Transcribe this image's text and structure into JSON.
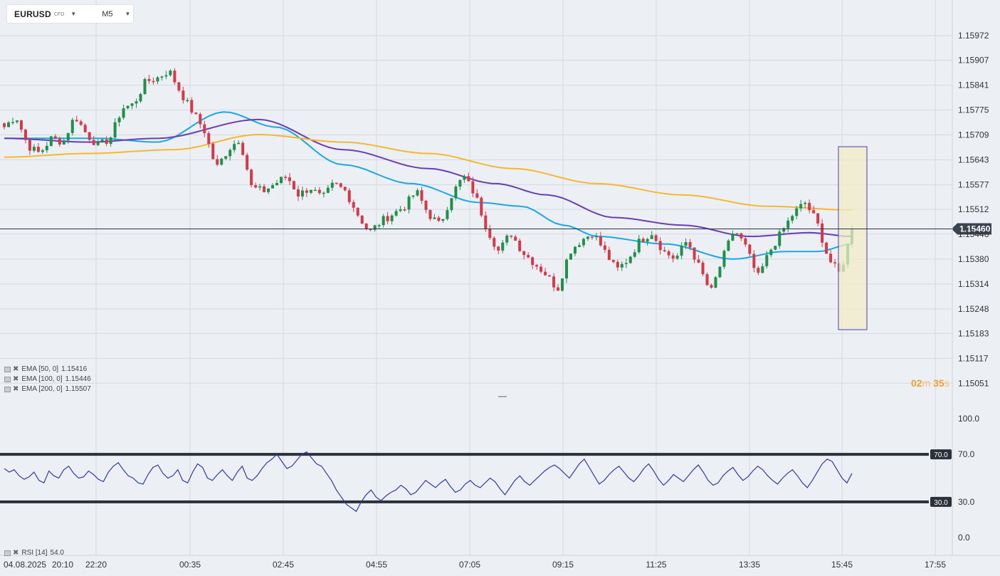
{
  "toolbar": {
    "symbol": "EURUSD",
    "symbol_type": "CFD",
    "timeframe": "M5"
  },
  "countdown": {
    "min": "02",
    "min_unit": "m",
    "sec": "35",
    "sec_unit": "s"
  },
  "indicators": {
    "ema50": {
      "label": "EMA [50, 0]",
      "value": "1.15416",
      "color": "#1aa7e8"
    },
    "ema100": {
      "label": "EMA [100, 0]",
      "value": "1.15446",
      "color": "#6a3db5"
    },
    "ema200": {
      "label": "EMA [200, 0]",
      "value": "1.15507",
      "color": "#f5b82e"
    },
    "rsi": {
      "label": "RSI [14]",
      "value": "54.0",
      "color": "#2f3aa8"
    }
  },
  "chart_data": [
    {
      "type": "candlestick",
      "name": "EURUSD M5",
      "current_price": "1.15460",
      "y_ticks": [
        "1.15972",
        "1.15907",
        "1.15841",
        "1.15775",
        "1.15709",
        "1.15643",
        "1.15577",
        "1.15512",
        "1.15446",
        "1.15380",
        "1.15314",
        "1.15248",
        "1.15183",
        "1.15117",
        "1.15051"
      ],
      "ylim": [
        1.1501,
        1.1601
      ],
      "x_tick_labels": [
        "04.08.2025",
        "20:10",
        "22:20",
        "00:35",
        "02:45",
        "04:55",
        "07:05",
        "09:15",
        "11:25",
        "13:35",
        "15:45",
        "17:55"
      ],
      "grid": true,
      "colors": {
        "up": "#1f8f4a",
        "down": "#d23a4a",
        "price_line": "#2b3440"
      },
      "highlight_box": {
        "stroke": "#4b3fb0",
        "fill": "#f1ecc8"
      },
      "ohlc_anchors": [
        [
          1.1573,
          "open"
        ],
        [
          1.1576,
          "hi"
        ],
        [
          1.1568,
          "lo"
        ],
        [
          1.1566,
          "lo"
        ],
        [
          1.157,
          "hi"
        ],
        [
          1.1569,
          "mid"
        ],
        [
          1.1576,
          "hi"
        ],
        [
          1.1571,
          "mid"
        ],
        [
          1.1568,
          "lo"
        ],
        [
          1.157,
          "mid"
        ],
        [
          1.1578,
          "hi"
        ],
        [
          1.1579,
          "hi"
        ],
        [
          1.1585,
          "hi"
        ],
        [
          1.1586,
          "hi"
        ],
        [
          1.1588,
          "hi"
        ],
        [
          1.1582,
          "mid"
        ],
        [
          1.1577,
          "mid"
        ],
        [
          1.1572,
          "mid"
        ],
        [
          1.1562,
          "lo"
        ],
        [
          1.1567,
          "mid"
        ],
        [
          1.157,
          "hi"
        ],
        [
          1.1557,
          "lo"
        ],
        [
          1.1556,
          "lo"
        ],
        [
          1.1558,
          "mid"
        ],
        [
          1.156,
          "mid"
        ],
        [
          1.1555,
          "lo"
        ],
        [
          1.1557,
          "mid"
        ],
        [
          1.1554,
          "lo"
        ],
        [
          1.1558,
          "mid"
        ],
        [
          1.1556,
          "mid"
        ],
        [
          1.155,
          "lo"
        ],
        [
          1.1545,
          "lo"
        ],
        [
          1.1548,
          "mid"
        ],
        [
          1.155,
          "mid"
        ],
        [
          1.1552,
          "mid"
        ],
        [
          1.1556,
          "hi"
        ],
        [
          1.155,
          "mid"
        ],
        [
          1.1547,
          "lo"
        ],
        [
          1.1555,
          "hi"
        ],
        [
          1.156,
          "hi"
        ],
        [
          1.1555,
          "mid"
        ],
        [
          1.1546,
          "lo"
        ],
        [
          1.154,
          "lo"
        ],
        [
          1.1545,
          "mid"
        ],
        [
          1.154,
          "lo"
        ],
        [
          1.1537,
          "lo"
        ],
        [
          1.1534,
          "lo"
        ],
        [
          1.153,
          "lo"
        ],
        [
          1.154,
          "mid"
        ],
        [
          1.1543,
          "hi"
        ],
        [
          1.1545,
          "hi"
        ],
        [
          1.154,
          "mid"
        ],
        [
          1.1535,
          "lo"
        ],
        [
          1.1538,
          "mid"
        ],
        [
          1.1543,
          "hi"
        ],
        [
          1.1545,
          "hi"
        ],
        [
          1.154,
          "mid"
        ],
        [
          1.1538,
          "mid"
        ],
        [
          1.1543,
          "hi"
        ],
        [
          1.1536,
          "lo"
        ],
        [
          1.1529,
          "lo"
        ],
        [
          1.1538,
          "mid"
        ],
        [
          1.1546,
          "hi"
        ],
        [
          1.1541,
          "mid"
        ],
        [
          1.1533,
          "lo"
        ],
        [
          1.154,
          "mid"
        ],
        [
          1.1545,
          "hi"
        ],
        [
          1.155,
          "hi"
        ],
        [
          1.1553,
          "hi"
        ],
        [
          1.1548,
          "mid"
        ],
        [
          1.1538,
          "lo"
        ],
        [
          1.1534,
          "lo"
        ],
        [
          1.1546,
          "last"
        ]
      ],
      "series": [
        {
          "name": "EMA [50, 0]",
          "x": [
            0,
            0.11,
            0.18,
            0.26,
            0.32,
            0.4,
            0.48,
            0.56,
            0.61,
            0.66,
            0.7,
            0.78,
            0.86,
            0.92,
            0.96,
            1.0
          ],
          "y": [
            1.157,
            1.157,
            1.1569,
            1.1577,
            1.1573,
            1.1563,
            1.1558,
            1.1553,
            1.1552,
            1.1547,
            1.1544,
            1.1542,
            1.1538,
            1.154,
            1.154,
            1.1542
          ]
        },
        {
          "name": "EMA [100, 0]",
          "x": [
            0,
            0.1,
            0.18,
            0.3,
            0.4,
            0.5,
            0.58,
            0.64,
            0.72,
            0.8,
            0.88,
            0.95,
            1.0
          ],
          "y": [
            1.157,
            1.1569,
            1.157,
            1.1575,
            1.1567,
            1.1562,
            1.1558,
            1.1555,
            1.1549,
            1.1547,
            1.1544,
            1.1545,
            1.1544
          ]
        },
        {
          "name": "EMA [200, 0]",
          "x": [
            0,
            0.1,
            0.2,
            0.3,
            0.4,
            0.5,
            0.6,
            0.7,
            0.8,
            0.9,
            1.0
          ],
          "y": [
            1.1565,
            1.1566,
            1.1567,
            1.1571,
            1.1569,
            1.1566,
            1.1562,
            1.1558,
            1.1555,
            1.1552,
            1.1551
          ]
        }
      ]
    },
    {
      "type": "line",
      "name": "RSI [14]",
      "ylim": [
        0,
        100
      ],
      "y_ticks": [
        "100.0",
        "70.0",
        "30.0",
        "0.0"
      ],
      "levels": [
        70,
        30
      ],
      "values": [
        58,
        55,
        57,
        52,
        49,
        51,
        55,
        48,
        46,
        56,
        52,
        50,
        57,
        60,
        54,
        50,
        51,
        56,
        53,
        49,
        47,
        55,
        60,
        63,
        57,
        52,
        50,
        46,
        45,
        53,
        59,
        61,
        54,
        50,
        52,
        57,
        48,
        46,
        55,
        62,
        59,
        50,
        48,
        53,
        57,
        52,
        48,
        55,
        60,
        50,
        48,
        52,
        58,
        63,
        66,
        70,
        64,
        58,
        60,
        65,
        70,
        72,
        67,
        62,
        60,
        54,
        48,
        40,
        34,
        28,
        25,
        22,
        30,
        36,
        40,
        34,
        31,
        35,
        38,
        40,
        44,
        41,
        36,
        38,
        43,
        48,
        45,
        42,
        46,
        49,
        43,
        38,
        40,
        45,
        48,
        44,
        42,
        46,
        50,
        47,
        41,
        36,
        42,
        48,
        52,
        47,
        44,
        48,
        52,
        56,
        59,
        61,
        58,
        54,
        50,
        56,
        62,
        66,
        59,
        52,
        45,
        48,
        53,
        57,
        60,
        55,
        50,
        47,
        52,
        58,
        62,
        56,
        49,
        44,
        48,
        53,
        50,
        47,
        52,
        57,
        61,
        55,
        48,
        44,
        46,
        52,
        56,
        59,
        53,
        48,
        51,
        56,
        60,
        57,
        52,
        48,
        45,
        50,
        54,
        57,
        52,
        46,
        42,
        48,
        55,
        62,
        66,
        64,
        57,
        50,
        46,
        54
      ],
      "last_label": "54.0"
    }
  ]
}
